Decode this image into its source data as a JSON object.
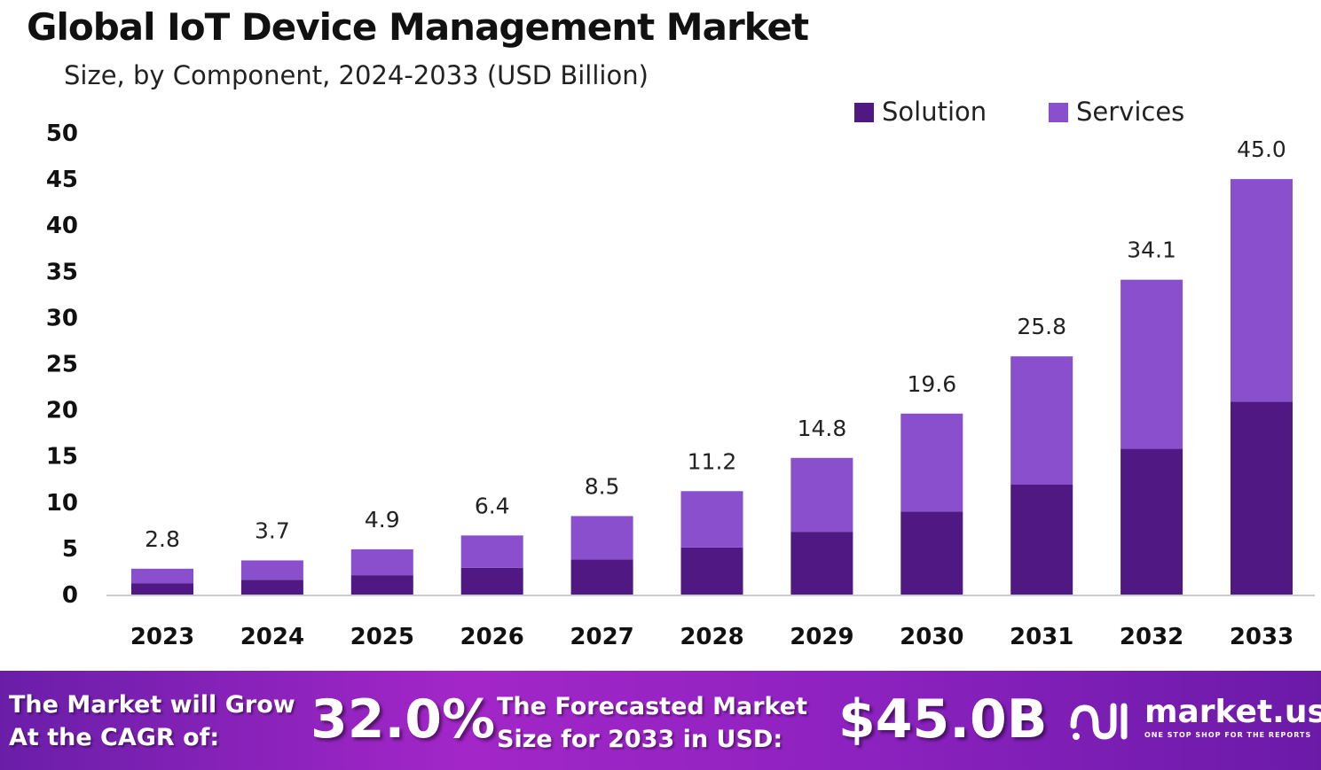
{
  "chart_data": {
    "type": "bar",
    "stacked": true,
    "title": "Global IoT Device Management Market",
    "subtitle": "Size, by Component, 2024-2033 (USD Billion)",
    "xlabel": "",
    "ylabel": "",
    "ylim": [
      0,
      50
    ],
    "yticks": [
      0,
      5,
      10,
      15,
      20,
      25,
      30,
      35,
      40,
      45,
      50
    ],
    "grid": false,
    "legend_position": "top-right",
    "categories": [
      "2023",
      "2024",
      "2025",
      "2026",
      "2027",
      "2028",
      "2029",
      "2030",
      "2031",
      "2032",
      "2033"
    ],
    "series": [
      {
        "name": "Solution",
        "color": "#4f1882",
        "values": [
          1.2,
          1.6,
          2.1,
          2.9,
          3.8,
          5.1,
          6.8,
          9.0,
          11.9,
          15.8,
          20.9
        ]
      },
      {
        "name": "Services",
        "color": "#8a4fcc",
        "values": [
          1.6,
          2.1,
          2.8,
          3.5,
          4.7,
          6.1,
          8.0,
          10.6,
          13.9,
          18.3,
          24.1
        ]
      }
    ],
    "totals": [
      "2.8",
      "3.7",
      "4.9",
      "6.4",
      "8.5",
      "11.2",
      "14.8",
      "19.6",
      "25.8",
      "34.1",
      "45.0"
    ]
  },
  "footer": {
    "cagr_label_1": "The Market will Grow",
    "cagr_label_2": "At the CAGR of:",
    "cagr_value": "32.0%",
    "forecast_label_1": "The Forecasted Market",
    "forecast_label_2": "Size for 2033 in USD:",
    "forecast_value": "$45.0B",
    "brand": "market.us",
    "brand_tagline": "ONE STOP SHOP FOR THE REPORTS"
  }
}
